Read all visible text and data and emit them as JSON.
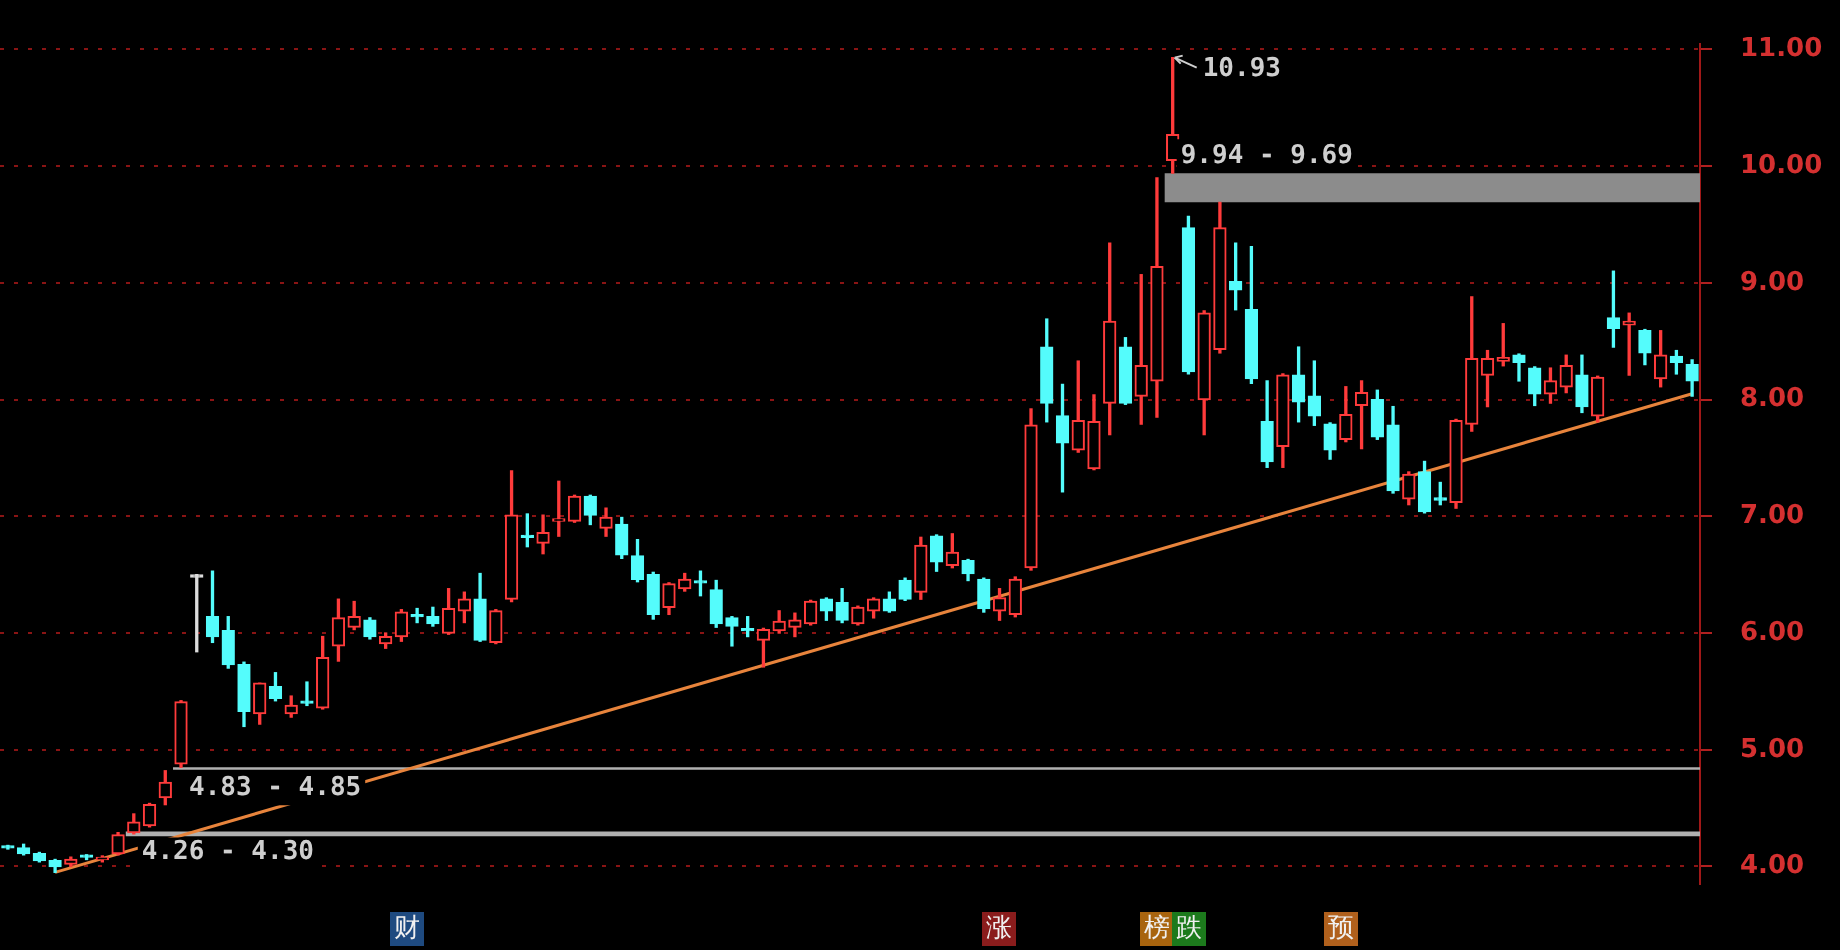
{
  "chart_data": {
    "type": "candlestick",
    "categories": [
      null,
      null,
      null,
      null,
      null,
      null,
      null,
      null,
      null,
      null,
      null,
      null,
      null,
      null,
      null,
      null,
      null,
      null,
      null,
      null,
      null,
      null,
      null,
      null,
      null,
      null,
      null,
      null,
      null,
      null,
      null,
      null,
      null,
      null,
      null,
      null,
      null,
      null,
      null,
      null,
      null,
      null,
      null,
      null,
      null,
      null,
      null,
      null,
      null,
      null,
      null,
      null,
      null,
      null,
      null,
      null,
      null,
      null,
      null,
      null,
      null,
      null,
      null,
      null,
      null,
      null,
      null,
      null,
      null,
      null,
      null,
      null,
      null,
      null,
      null,
      null,
      null,
      null,
      null,
      null,
      null,
      null,
      null,
      null,
      null,
      null,
      null,
      null,
      null,
      null,
      null,
      null,
      null,
      null,
      null,
      null,
      null,
      null,
      null,
      null,
      null,
      null,
      null,
      null,
      null,
      null,
      null,
      null
    ],
    "ohlc": [
      [
        4.17,
        4.18,
        4.15,
        4.16
      ],
      [
        4.16,
        4.19,
        4.1,
        4.11
      ],
      [
        4.11,
        4.12,
        4.04,
        4.05
      ],
      [
        4.05,
        4.06,
        3.95,
        4.0
      ],
      [
        4.02,
        4.08,
        4.0,
        4.06
      ],
      [
        4.08,
        4.1,
        4.06,
        4.08
      ],
      [
        4.06,
        4.09,
        4.04,
        4.07
      ],
      [
        4.11,
        4.29,
        4.1,
        4.27
      ],
      [
        4.29,
        4.45,
        4.28,
        4.38
      ],
      [
        4.35,
        4.54,
        4.34,
        4.53
      ],
      [
        4.59,
        4.82,
        4.53,
        4.72
      ],
      [
        4.88,
        5.42,
        4.85,
        5.41
      ],
      [
        6.48,
        6.5,
        5.84,
        6.48
      ],
      [
        6.14,
        6.53,
        5.92,
        5.97
      ],
      [
        6.02,
        6.14,
        5.7,
        5.73
      ],
      [
        5.73,
        5.75,
        5.2,
        5.33
      ],
      [
        5.31,
        5.57,
        5.22,
        5.57
      ],
      [
        5.54,
        5.66,
        5.42,
        5.44
      ],
      [
        5.31,
        5.46,
        5.28,
        5.38
      ],
      [
        5.4,
        5.58,
        5.38,
        5.4
      ],
      [
        5.36,
        5.97,
        5.35,
        5.79
      ],
      [
        5.89,
        6.29,
        5.76,
        6.13
      ],
      [
        6.05,
        6.27,
        6.03,
        6.14
      ],
      [
        6.11,
        6.13,
        5.95,
        5.97
      ],
      [
        5.91,
        6.0,
        5.87,
        5.97
      ],
      [
        5.97,
        6.2,
        5.93,
        6.18
      ],
      [
        6.14,
        6.21,
        6.09,
        6.14
      ],
      [
        6.14,
        6.22,
        6.06,
        6.08
      ],
      [
        6.0,
        6.38,
        5.99,
        6.21
      ],
      [
        6.19,
        6.35,
        6.09,
        6.29
      ],
      [
        6.29,
        6.51,
        5.93,
        5.94
      ],
      [
        5.92,
        6.2,
        5.91,
        6.19
      ],
      [
        6.29,
        7.39,
        6.27,
        7.01
      ],
      [
        6.82,
        7.02,
        6.74,
        6.82
      ],
      [
        6.77,
        7.01,
        6.68,
        6.86
      ],
      [
        6.96,
        7.3,
        6.83,
        6.97
      ],
      [
        6.96,
        7.18,
        6.95,
        7.17
      ],
      [
        7.17,
        7.18,
        6.93,
        7.01
      ],
      [
        6.9,
        7.07,
        6.83,
        6.99
      ],
      [
        6.93,
        6.99,
        6.64,
        6.67
      ],
      [
        6.66,
        6.8,
        6.44,
        6.46
      ],
      [
        6.5,
        6.52,
        6.12,
        6.16
      ],
      [
        6.22,
        6.43,
        6.16,
        6.42
      ],
      [
        6.38,
        6.51,
        6.36,
        6.46
      ],
      [
        6.43,
        6.53,
        6.32,
        6.43
      ],
      [
        6.37,
        6.45,
        6.05,
        6.08
      ],
      [
        6.13,
        6.14,
        5.89,
        6.06
      ],
      [
        6.02,
        6.14,
        5.97,
        6.02
      ],
      [
        5.94,
        6.04,
        5.71,
        6.03
      ],
      [
        6.02,
        6.19,
        6.0,
        6.1
      ],
      [
        6.05,
        6.17,
        5.97,
        6.11
      ],
      [
        6.08,
        6.28,
        6.07,
        6.27
      ],
      [
        6.29,
        6.3,
        6.11,
        6.19
      ],
      [
        6.26,
        6.38,
        6.09,
        6.11
      ],
      [
        6.08,
        6.23,
        6.07,
        6.22
      ],
      [
        6.19,
        6.3,
        6.13,
        6.29
      ],
      [
        6.29,
        6.35,
        6.18,
        6.19
      ],
      [
        6.45,
        6.47,
        6.28,
        6.29
      ],
      [
        6.35,
        6.82,
        6.29,
        6.75
      ],
      [
        6.83,
        6.84,
        6.53,
        6.61
      ],
      [
        6.58,
        6.85,
        6.56,
        6.69
      ],
      [
        6.62,
        6.63,
        6.45,
        6.51
      ],
      [
        6.46,
        6.47,
        6.18,
        6.21
      ],
      [
        6.19,
        6.38,
        6.11,
        6.3
      ],
      [
        6.16,
        6.48,
        6.14,
        6.46
      ],
      [
        6.56,
        7.92,
        6.54,
        7.78
      ],
      [
        8.45,
        8.69,
        7.81,
        7.97
      ],
      [
        7.86,
        8.13,
        7.21,
        7.63
      ],
      [
        7.57,
        8.33,
        7.55,
        7.82
      ],
      [
        7.41,
        8.04,
        7.4,
        7.81
      ],
      [
        7.97,
        9.34,
        7.7,
        8.67
      ],
      [
        8.45,
        8.53,
        7.96,
        7.97
      ],
      [
        8.03,
        9.07,
        7.79,
        8.29
      ],
      [
        8.16,
        9.9,
        7.85,
        9.14
      ],
      [
        10.05,
        10.93,
        9.94,
        10.27
      ],
      [
        9.47,
        9.57,
        8.22,
        8.24
      ],
      [
        8.0,
        8.76,
        7.7,
        8.74
      ],
      [
        8.43,
        9.69,
        8.4,
        9.47
      ],
      [
        9.01,
        9.34,
        8.77,
        8.94
      ],
      [
        8.77,
        9.31,
        8.14,
        8.18
      ],
      [
        7.81,
        8.16,
        7.42,
        7.47
      ],
      [
        7.6,
        8.22,
        7.42,
        8.21
      ],
      [
        8.21,
        8.45,
        7.81,
        7.98
      ],
      [
        8.03,
        8.33,
        7.78,
        7.86
      ],
      [
        7.79,
        7.8,
        7.49,
        7.57
      ],
      [
        7.66,
        8.11,
        7.64,
        7.87
      ],
      [
        7.95,
        8.16,
        7.58,
        8.06
      ],
      [
        8.0,
        8.08,
        7.66,
        7.68
      ],
      [
        7.78,
        7.94,
        7.2,
        7.22
      ],
      [
        7.15,
        7.38,
        7.1,
        7.36
      ],
      [
        7.38,
        7.47,
        7.03,
        7.04
      ],
      [
        7.14,
        7.29,
        7.1,
        7.14
      ],
      [
        7.12,
        7.83,
        7.07,
        7.82
      ],
      [
        7.79,
        8.88,
        7.73,
        8.35
      ],
      [
        8.21,
        8.42,
        7.94,
        8.35
      ],
      [
        8.33,
        8.65,
        8.29,
        8.36
      ],
      [
        8.38,
        8.39,
        8.16,
        8.32
      ],
      [
        8.27,
        8.28,
        7.95,
        8.05
      ],
      [
        8.05,
        8.27,
        7.97,
        8.16
      ],
      [
        8.11,
        8.38,
        8.06,
        8.29
      ],
      [
        8.21,
        8.38,
        7.89,
        7.94
      ],
      [
        7.86,
        8.2,
        7.81,
        8.19
      ],
      [
        8.7,
        9.1,
        8.45,
        8.61
      ],
      [
        8.64,
        8.74,
        8.21,
        8.67
      ],
      [
        8.59,
        8.6,
        8.3,
        8.4
      ],
      [
        8.18,
        8.59,
        8.11,
        8.38
      ],
      [
        8.37,
        8.42,
        8.22,
        8.32
      ],
      [
        8.3,
        8.34,
        8.03,
        8.16
      ]
    ],
    "colors": [
      "#54fcfc",
      "#54fcfc",
      "#54fcfc",
      "#54fcfc",
      "#ff3b3b",
      "#54fcfc",
      "#ff3b3b",
      "#ff3b3b",
      "#ff3b3b",
      "#ff3b3b",
      "#ff3b3b",
      "#ff3b3b",
      "#dddddd",
      "#54fcfc",
      "#54fcfc",
      "#54fcfc",
      "#ff3b3b",
      "#54fcfc",
      "#ff3b3b",
      "#54fcfc",
      "#ff3b3b",
      "#ff3b3b",
      "#ff3b3b",
      "#54fcfc",
      "#ff3b3b",
      "#ff3b3b",
      "#54fcfc",
      "#54fcfc",
      "#ff3b3b",
      "#ff3b3b",
      "#54fcfc",
      "#ff3b3b",
      "#ff3b3b",
      "#54fcfc",
      "#ff3b3b",
      "#ff3b3b",
      "#ff3b3b",
      "#54fcfc",
      "#ff3b3b",
      "#54fcfc",
      "#54fcfc",
      "#54fcfc",
      "#ff3b3b",
      "#ff3b3b",
      "#54fcfc",
      "#54fcfc",
      "#54fcfc",
      "#54fcfc",
      "#ff3b3b",
      "#ff3b3b",
      "#ff3b3b",
      "#ff3b3b",
      "#54fcfc",
      "#54fcfc",
      "#ff3b3b",
      "#ff3b3b",
      "#54fcfc",
      "#54fcfc",
      "#ff3b3b",
      "#54fcfc",
      "#ff3b3b",
      "#54fcfc",
      "#54fcfc",
      "#ff3b3b",
      "#ff3b3b",
      "#ff3b3b",
      "#54fcfc",
      "#54fcfc",
      "#ff3b3b",
      "#ff3b3b",
      "#ff3b3b",
      "#54fcfc",
      "#ff3b3b",
      "#ff3b3b",
      "#ff3b3b",
      "#54fcfc",
      "#ff3b3b",
      "#ff3b3b",
      "#54fcfc",
      "#54fcfc",
      "#54fcfc",
      "#ff3b3b",
      "#54fcfc",
      "#54fcfc",
      "#54fcfc",
      "#ff3b3b",
      "#ff3b3b",
      "#54fcfc",
      "#54fcfc",
      "#ff3b3b",
      "#54fcfc",
      "#54fcfc",
      "#ff3b3b",
      "#ff3b3b",
      "#ff3b3b",
      "#ff3b3b",
      "#54fcfc",
      "#54fcfc",
      "#ff3b3b",
      "#ff3b3b",
      "#54fcfc",
      "#ff3b3b",
      "#54fcfc",
      "#ff3b3b",
      "#54fcfc",
      "#ff3b3b",
      "#54fcfc",
      "#54fcfc"
    ],
    "series": [
      {
        "type": "line",
        "color": "#e8843c",
        "values": [
          null,
          null,
          null,
          3.95,
          null,
          null,
          null,
          null,
          null,
          null,
          null,
          null,
          null,
          null,
          null,
          null,
          null,
          null,
          null,
          null,
          null,
          null,
          null,
          null,
          null,
          null,
          null,
          null,
          null,
          null,
          null,
          null,
          null,
          null,
          null,
          null,
          null,
          null,
          null,
          null,
          null,
          null,
          null,
          null,
          null,
          null,
          null,
          null,
          null,
          null,
          null,
          null,
          null,
          null,
          null,
          null,
          null,
          null,
          null,
          null,
          null,
          null,
          null,
          null,
          null,
          null,
          null,
          null,
          null,
          null,
          null,
          null,
          null,
          null,
          null,
          null,
          null,
          null,
          null,
          null,
          null,
          null,
          null,
          null,
          null,
          null,
          null,
          null,
          null,
          null,
          null,
          null,
          null,
          null,
          null,
          null,
          null,
          null,
          null,
          null,
          null,
          null,
          null,
          null,
          null,
          null,
          null,
          8.05
        ]
      }
    ],
    "ylim": [
      3.85,
      11.05
    ],
    "yticks": [
      {
        "value": 4,
        "label": "4.00"
      },
      {
        "value": 5,
        "label": "5.00"
      },
      {
        "value": 6,
        "label": "6.00"
      },
      {
        "value": 7,
        "label": "7.00"
      },
      {
        "value": 8,
        "label": "8.00"
      },
      {
        "value": 9,
        "label": "9.00"
      },
      {
        "value": 10,
        "label": "10.00"
      },
      {
        "value": 11,
        "label": "11.00"
      }
    ],
    "bands": [
      {
        "axis": "y",
        "from": 9.69,
        "to": 9.94,
        "label": "9.94 - 9.69",
        "color": "#8c8c8c"
      },
      {
        "axis": "y",
        "from": 4.83,
        "to": 4.85,
        "label": "4.83 - 4.85",
        "color": "#b0b0b0"
      },
      {
        "axis": "y",
        "from": 4.26,
        "to": 4.3,
        "label": "4.26 - 4.30",
        "color": "#b0b0b0"
      }
    ],
    "annotations": [
      "10.93",
      "财",
      "涨",
      "榜",
      "跌",
      "预"
    ],
    "grid": "y",
    "legend": false
  }
}
